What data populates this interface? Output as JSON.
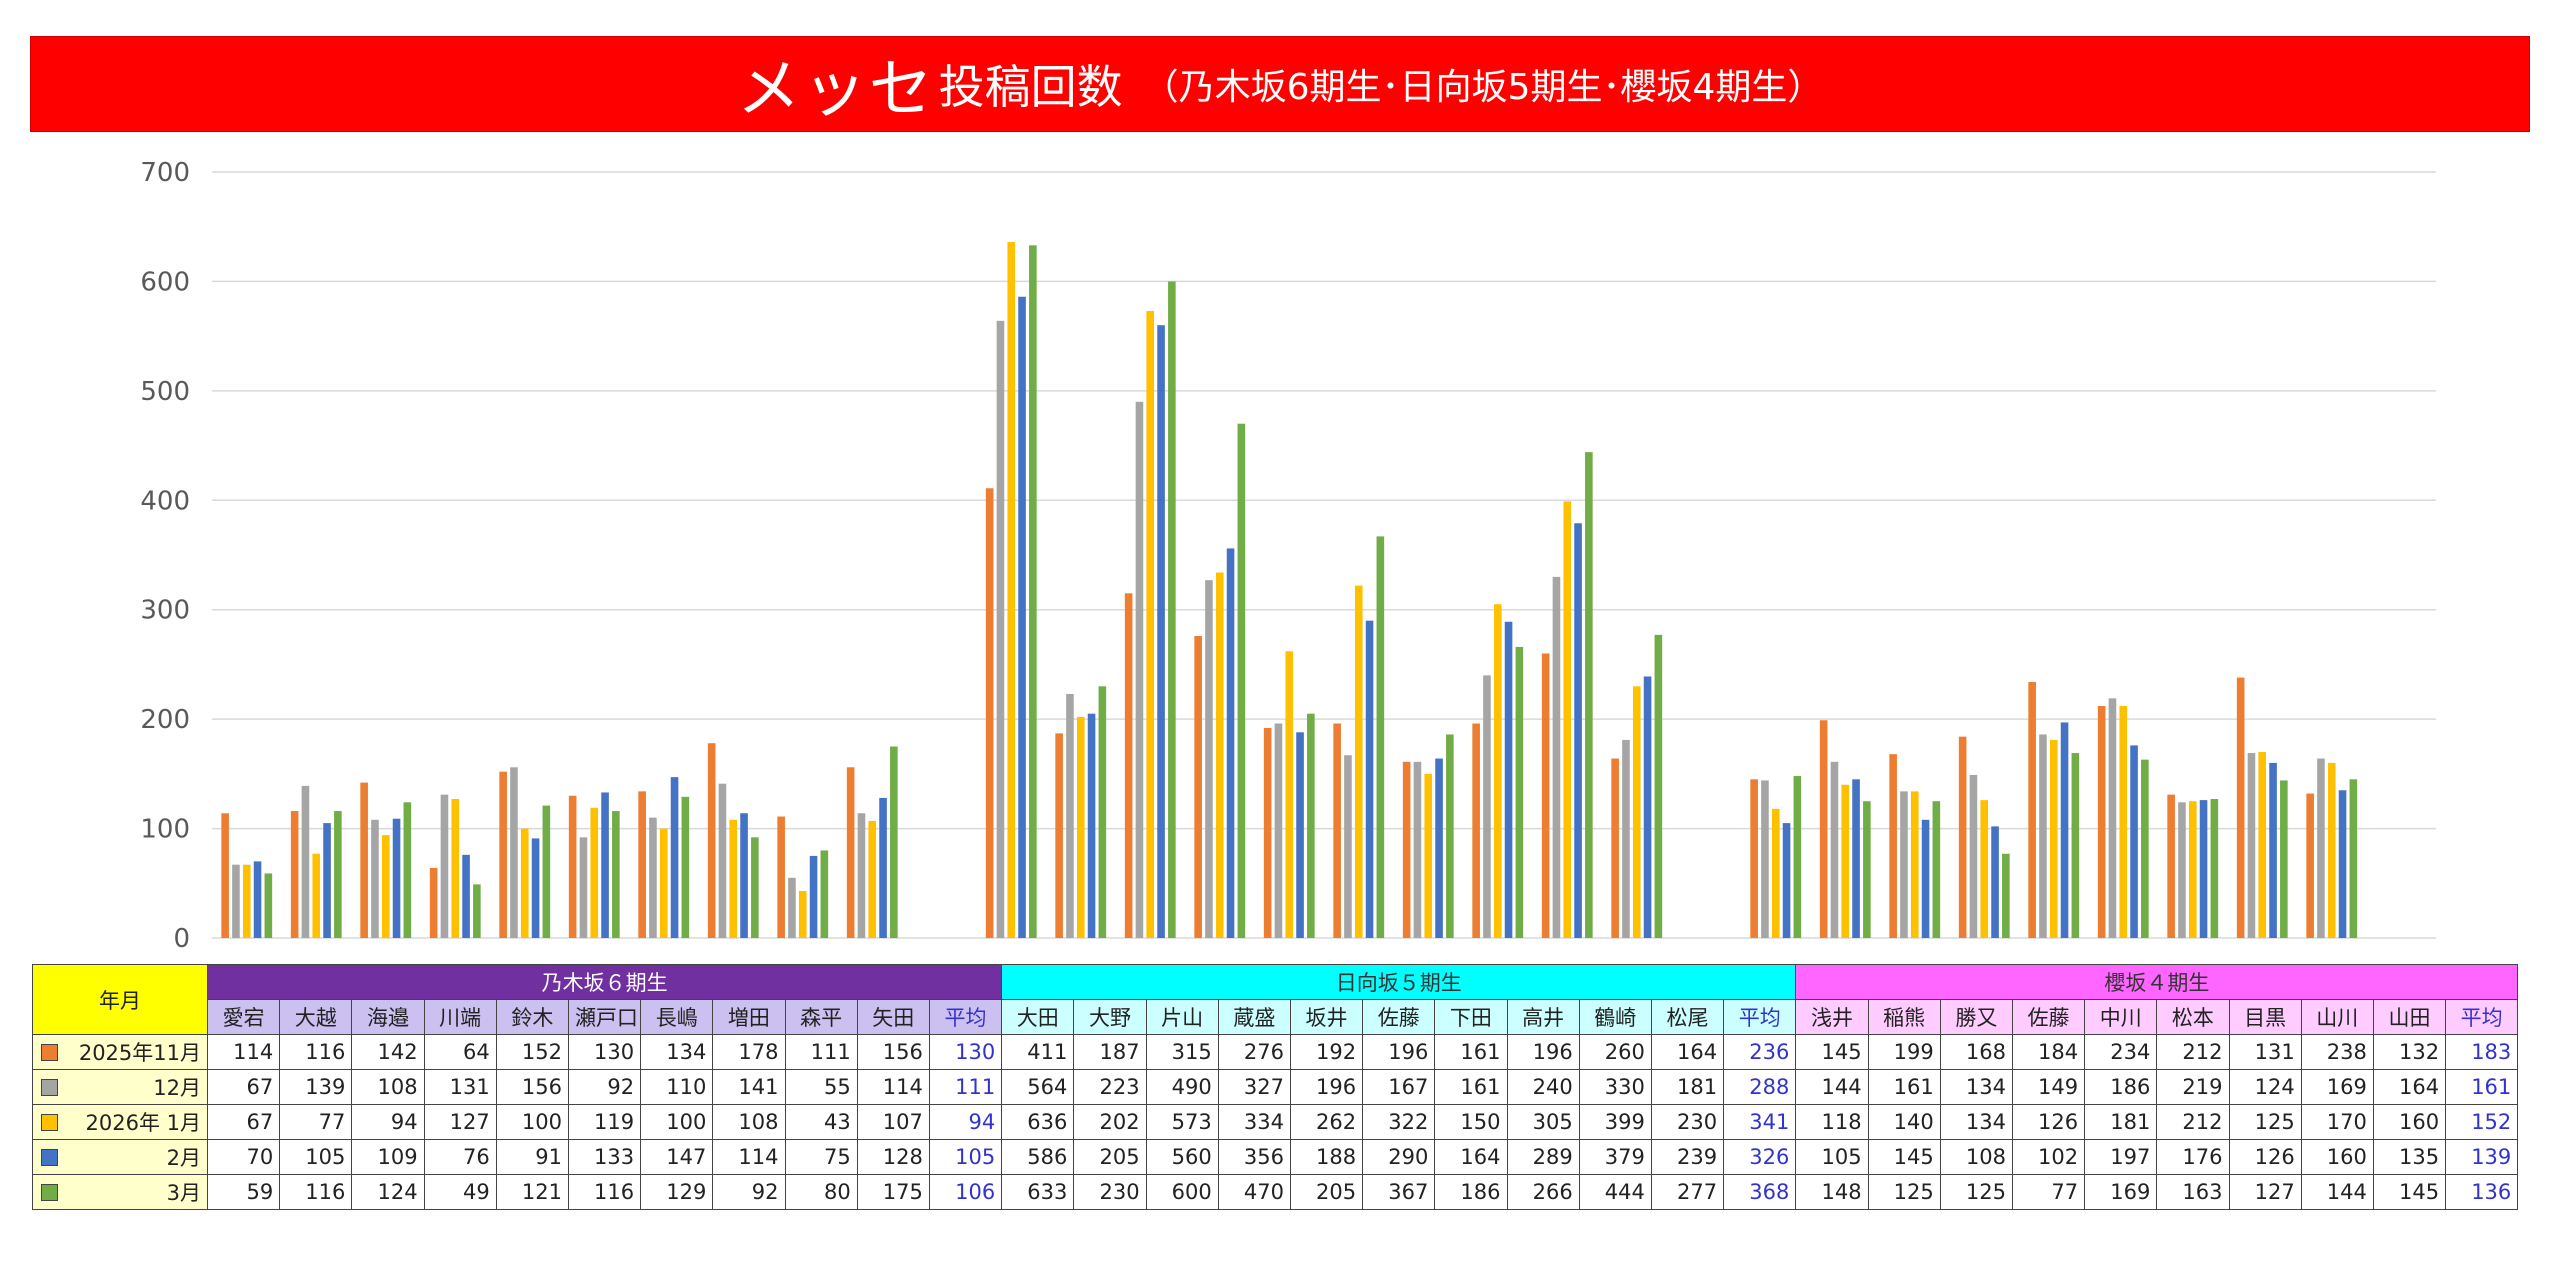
{
  "banner": {
    "title_big": "メッセ",
    "title_mid": "投稿回数",
    "title_sub": "（乃木坂6期生･日向坂5期生･櫻坂4期生）"
  },
  "table": {
    "corner_label": "年月",
    "row_labels": [
      "2025年11月",
      "12月",
      "2026年 1月",
      "2月",
      "3月"
    ]
  },
  "colors": {
    "series": [
      "#ed7d31",
      "#a5a5a5",
      "#ffc000",
      "#4472c4",
      "#70ad47"
    ],
    "groups_bg": [
      "#7030a0",
      "#00ffff",
      "#ff66ff"
    ],
    "groups_text": [
      "#ffffff",
      "#333333",
      "#333333"
    ],
    "members_bg": [
      "#ccc0f0",
      "#ccffff",
      "#ffccff"
    ],
    "grid": "#d9d9d9",
    "avg_text": "#3333cc",
    "banner": "#ff0000"
  },
  "chart_data": {
    "type": "bar",
    "ylim": [
      0,
      700
    ],
    "yticks": [
      0,
      100,
      200,
      300,
      400,
      500,
      600,
      700
    ],
    "grid": true,
    "legend": "table-below",
    "series_names": [
      "2025年11月",
      "12月",
      "2026年 1月",
      "2月",
      "3月"
    ],
    "groups": [
      {
        "name": "乃木坂６期生",
        "members": [
          {
            "name": "愛宕",
            "values": [
              114,
              67,
              67,
              70,
              59
            ]
          },
          {
            "name": "大越",
            "values": [
              116,
              139,
              77,
              105,
              116
            ]
          },
          {
            "name": "海邉",
            "values": [
              142,
              108,
              94,
              109,
              124
            ]
          },
          {
            "name": "川端",
            "values": [
              64,
              131,
              127,
              76,
              49
            ]
          },
          {
            "name": "鈴木",
            "values": [
              152,
              156,
              100,
              91,
              121
            ]
          },
          {
            "name": "瀬戸口",
            "values": [
              130,
              92,
              119,
              133,
              116
            ]
          },
          {
            "name": "長嶋",
            "values": [
              134,
              110,
              100,
              147,
              129
            ]
          },
          {
            "name": "増田",
            "values": [
              178,
              141,
              108,
              114,
              92
            ]
          },
          {
            "name": "森平",
            "values": [
              111,
              55,
              43,
              75,
              80
            ]
          },
          {
            "name": "矢田",
            "values": [
              156,
              114,
              107,
              128,
              175
            ]
          },
          {
            "name": "平均",
            "values": [
              130,
              111,
              94,
              105,
              106
            ],
            "average": true
          }
        ]
      },
      {
        "name": "日向坂５期生",
        "members": [
          {
            "name": "大田",
            "values": [
              411,
              564,
              636,
              586,
              633
            ]
          },
          {
            "name": "大野",
            "values": [
              187,
              223,
              202,
              205,
              230
            ]
          },
          {
            "name": "片山",
            "values": [
              315,
              490,
              573,
              560,
              600
            ]
          },
          {
            "name": "蔵盛",
            "values": [
              276,
              327,
              334,
              356,
              470
            ]
          },
          {
            "name": "坂井",
            "values": [
              192,
              196,
              262,
              188,
              205
            ]
          },
          {
            "name": "佐藤",
            "values": [
              196,
              167,
              322,
              290,
              367
            ]
          },
          {
            "name": "下田",
            "values": [
              161,
              161,
              150,
              164,
              186
            ]
          },
          {
            "name": "高井",
            "values": [
              196,
              240,
              305,
              289,
              266
            ]
          },
          {
            "name": "鶴崎",
            "values": [
              260,
              330,
              399,
              379,
              444
            ]
          },
          {
            "name": "松尾",
            "values": [
              164,
              181,
              230,
              239,
              277
            ]
          },
          {
            "name": "平均",
            "values": [
              236,
              288,
              341,
              326,
              368
            ],
            "average": true
          }
        ]
      },
      {
        "name": "櫻坂４期生",
        "members": [
          {
            "name": "浅井",
            "values": [
              145,
              144,
              118,
              105,
              148
            ]
          },
          {
            "name": "稲熊",
            "values": [
              199,
              161,
              140,
              145,
              125
            ]
          },
          {
            "name": "勝又",
            "values": [
              168,
              134,
              134,
              108,
              125
            ]
          },
          {
            "name": "佐藤",
            "values": [
              184,
              149,
              126,
              102,
              77
            ]
          },
          {
            "name": "中川",
            "values": [
              234,
              186,
              181,
              197,
              169
            ]
          },
          {
            "name": "松本",
            "values": [
              212,
              219,
              212,
              176,
              163
            ]
          },
          {
            "name": "目黒",
            "values": [
              131,
              124,
              125,
              126,
              127
            ]
          },
          {
            "name": "山川",
            "values": [
              238,
              169,
              170,
              160,
              144
            ]
          },
          {
            "name": "山田",
            "values": [
              132,
              164,
              160,
              135,
              145
            ]
          },
          {
            "name": "平均",
            "values": [
              183,
              161,
              152,
              139,
              136
            ],
            "average": true
          }
        ]
      }
    ]
  }
}
